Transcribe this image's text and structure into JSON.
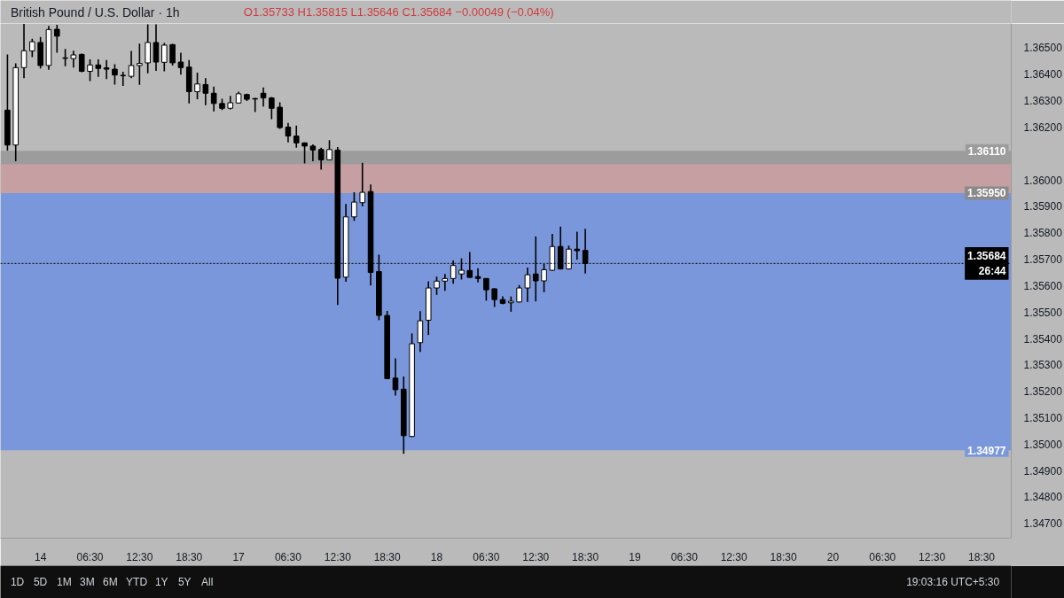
{
  "chart_data": {
    "type": "candlestick",
    "title": "British Pound / U.S. Dollar · 1h",
    "subtitle": "O1.35733 H1.35815 L1.35646 C1.35684 −0.00049 (−0.04%)",
    "categories": [
      null,
      null,
      null,
      null,
      "14",
      null,
      null,
      null,
      null,
      null,
      "06:30",
      null,
      null,
      null,
      null,
      null,
      "12:30",
      null,
      null,
      null,
      null,
      null,
      "18:30",
      null,
      null,
      null,
      null,
      null,
      "17",
      null,
      null,
      null,
      null,
      null,
      "06:30",
      null,
      null,
      null,
      null,
      null,
      "12:30",
      null,
      null,
      null,
      null,
      null,
      "18:30",
      null,
      null,
      null,
      null,
      null,
      "18",
      null,
      null,
      null,
      null,
      null,
      "06:30",
      null,
      null,
      null,
      null,
      null,
      "12:30",
      null,
      null,
      null,
      null,
      null,
      "18:30",
      null,
      null,
      null,
      null,
      null,
      "19",
      null,
      null,
      null,
      null,
      null,
      "06:30",
      null,
      null,
      null,
      null,
      null,
      "12:30",
      null,
      null,
      null,
      null,
      null,
      "18:30",
      null,
      null,
      null,
      null,
      null,
      "20",
      null,
      null,
      null,
      null,
      null,
      "06:30",
      null,
      null,
      null,
      null,
      null,
      "12:30",
      null,
      null,
      null,
      null,
      null,
      "18:30",
      null,
      null,
      null
    ],
    "ohlc": [
      [
        1.36264,
        1.36475,
        1.36111,
        1.36132
      ],
      [
        1.36132,
        1.36441,
        1.36071,
        1.36425
      ],
      [
        1.36425,
        1.3659,
        1.36385,
        1.36489
      ],
      [
        1.36488,
        1.36534,
        1.36465,
        1.36523
      ],
      [
        1.3652,
        1.36541,
        1.36422,
        1.36433
      ],
      [
        1.36433,
        1.36583,
        1.36417,
        1.36569
      ],
      [
        1.3657,
        1.36587,
        1.36481,
        1.36544
      ],
      [
        1.36462,
        1.36496,
        1.3643,
        1.3646
      ],
      [
        1.36459,
        1.36489,
        1.36425,
        1.36473
      ],
      [
        1.36475,
        1.36478,
        1.36408,
        1.36411
      ],
      [
        1.36411,
        1.36456,
        1.36374,
        1.36435
      ],
      [
        1.36435,
        1.36456,
        1.3639,
        1.36422
      ],
      [
        1.36424,
        1.36454,
        1.36382,
        1.36419
      ],
      [
        1.36419,
        1.36438,
        1.36361,
        1.36397
      ],
      [
        1.36394,
        1.36409,
        1.36356,
        1.36396
      ],
      [
        1.36392,
        1.36488,
        1.36385,
        1.36433
      ],
      [
        1.36433,
        1.36516,
        1.3636,
        1.36441
      ],
      [
        1.36443,
        1.36589,
        1.36403,
        1.3652
      ],
      [
        1.3652,
        1.36589,
        1.36413,
        1.36446
      ],
      [
        1.36445,
        1.36518,
        1.36411,
        1.3651
      ],
      [
        1.36512,
        1.36515,
        1.36433,
        1.36443
      ],
      [
        1.36446,
        1.36481,
        1.36398,
        1.36425
      ],
      [
        1.36427,
        1.36454,
        1.36289,
        1.36334
      ],
      [
        1.36334,
        1.36406,
        1.36305,
        1.36363
      ],
      [
        1.36361,
        1.36385,
        1.36283,
        1.36328
      ],
      [
        1.36328,
        1.36353,
        1.36259,
        1.36289
      ],
      [
        1.36289,
        1.36307,
        1.36264,
        1.36271
      ],
      [
        1.36271,
        1.36318,
        1.36267,
        1.36292
      ],
      [
        1.36291,
        1.36334,
        1.36289,
        1.36326
      ],
      [
        1.36323,
        1.36326,
        1.36299,
        1.36305
      ],
      [
        1.36308,
        1.3631,
        1.36257,
        1.36306
      ],
      [
        1.36328,
        1.3635,
        1.36278,
        1.3631
      ],
      [
        1.3631,
        1.36314,
        1.3623,
        1.36271
      ],
      [
        1.36275,
        1.36294,
        1.36193,
        1.36198
      ],
      [
        1.362,
        1.36216,
        1.36142,
        1.36166
      ],
      [
        1.36166,
        1.36206,
        1.36122,
        1.3614
      ],
      [
        1.3614,
        1.36142,
        1.36062,
        1.36128
      ],
      [
        1.36128,
        1.36134,
        1.36071,
        1.36113
      ],
      [
        1.36115,
        1.36122,
        1.36039,
        1.36076
      ],
      [
        1.36076,
        1.3615,
        1.36075,
        1.36115
      ],
      [
        1.36113,
        1.36124,
        1.35527,
        1.35628
      ],
      [
        1.35632,
        1.35909,
        1.35615,
        1.3586
      ],
      [
        1.3586,
        1.35953,
        1.35845,
        1.35916
      ],
      [
        1.35914,
        1.36065,
        1.359,
        1.35953
      ],
      [
        1.35956,
        1.35983,
        1.356,
        1.3565
      ],
      [
        1.35653,
        1.35717,
        1.35469,
        1.35487
      ],
      [
        1.35487,
        1.35504,
        1.35246,
        1.35248
      ],
      [
        1.3525,
        1.35325,
        1.35184,
        1.35206
      ],
      [
        1.35208,
        1.35256,
        1.34963,
        1.35032
      ],
      [
        1.35029,
        1.35419,
        1.35027,
        1.3538
      ],
      [
        1.35384,
        1.35503,
        1.35349,
        1.35467
      ],
      [
        1.35469,
        1.35616,
        1.35413,
        1.35591
      ],
      [
        1.35591,
        1.35634,
        1.35565,
        1.35617
      ],
      [
        1.35617,
        1.35644,
        1.3558,
        1.35627
      ],
      [
        1.35627,
        1.35695,
        1.35607,
        1.35676
      ],
      [
        1.35644,
        1.35703,
        1.35623,
        1.35658
      ],
      [
        1.35657,
        1.35727,
        1.3563,
        1.35631
      ],
      [
        1.35634,
        1.35666,
        1.35612,
        1.35627
      ],
      [
        1.35627,
        1.35628,
        1.35543,
        1.35584
      ],
      [
        1.35588,
        1.35589,
        1.35519,
        1.35547
      ],
      [
        1.35547,
        1.35559,
        1.35529,
        1.35533
      ],
      [
        1.35535,
        1.35559,
        1.35501,
        1.35541
      ],
      [
        1.35538,
        1.35602,
        1.35536,
        1.35591
      ],
      [
        1.35591,
        1.35668,
        1.35538,
        1.35641
      ],
      [
        1.35644,
        1.35786,
        1.3554,
        1.35618
      ],
      [
        1.35618,
        1.35682,
        1.35575,
        1.3566
      ],
      [
        1.35658,
        1.35796,
        1.35656,
        1.35748
      ],
      [
        1.35748,
        1.35823,
        1.35661,
        1.35663
      ],
      [
        1.35663,
        1.35751,
        1.35661,
        1.35738
      ],
      [
        1.35738,
        1.35804,
        1.35698,
        1.35732
      ],
      [
        1.35733,
        1.35815,
        1.35646,
        1.35684
      ],
      null,
      null,
      null,
      null,
      null,
      null,
      null,
      null,
      null,
      null,
      null,
      null,
      null,
      null,
      null,
      null,
      null,
      null,
      null,
      null,
      null,
      null,
      null,
      null,
      null,
      null,
      null,
      null,
      null,
      null,
      null,
      null,
      null,
      null,
      null,
      null,
      null,
      null,
      null,
      null,
      null,
      null,
      null,
      null,
      null,
      null,
      null,
      null,
      null,
      null,
      null
    ],
    "colors": [
      "#000000",
      "#ffffff",
      "#ffffff",
      "#ffffff",
      "#000000",
      "#ffffff",
      "#000000",
      "#000000",
      "#ffffff",
      "#000000",
      "#ffffff",
      "#000000",
      "#000000",
      "#000000",
      "#ffffff",
      "#ffffff",
      "#ffffff",
      "#ffffff",
      "#000000",
      "#ffffff",
      "#000000",
      "#000000",
      "#000000",
      "#ffffff",
      "#000000",
      "#000000",
      "#000000",
      "#ffffff",
      "#ffffff",
      "#000000",
      "#000000",
      "#000000",
      "#000000",
      "#000000",
      "#000000",
      "#000000",
      "#000000",
      "#000000",
      "#000000",
      "#ffffff",
      "#000000",
      "#ffffff",
      "#ffffff",
      "#ffffff",
      "#000000",
      "#000000",
      "#000000",
      "#000000",
      "#000000",
      "#ffffff",
      "#ffffff",
      "#ffffff",
      "#ffffff",
      "#ffffff",
      "#ffffff",
      "#ffffff",
      "#000000",
      "#000000",
      "#000000",
      "#000000",
      "#000000",
      "#ffffff",
      "#ffffff",
      "#ffffff",
      "#000000",
      "#ffffff",
      "#ffffff",
      "#000000",
      "#ffffff",
      "#000000",
      "#000000",
      null,
      null,
      null,
      null,
      null,
      null,
      null,
      null,
      null,
      null,
      null,
      null,
      null,
      null,
      null,
      null,
      null,
      null,
      null,
      null,
      null,
      null,
      null,
      null,
      null,
      null,
      null,
      null,
      null,
      null,
      null,
      null,
      null,
      null,
      null,
      null,
      null,
      null,
      null,
      null,
      null,
      null,
      null,
      null,
      null,
      null,
      null,
      null,
      null,
      null,
      null
    ],
    "ylim": [
      1.34644,
      1.36592
    ],
    "yticks": [
      {
        "value": 1.365,
        "label": "1.36500"
      },
      {
        "value": 1.364,
        "label": "1.36400"
      },
      {
        "value": 1.363,
        "label": "1.36300"
      },
      {
        "value": 1.362,
        "label": "1.36200"
      },
      {
        "value": 1.36,
        "label": "1.36000"
      },
      {
        "value": 1.359,
        "label": "1.35900"
      },
      {
        "value": 1.358,
        "label": "1.35800"
      },
      {
        "value": 1.357,
        "label": "1.35700"
      },
      {
        "value": 1.356,
        "label": "1.35600"
      },
      {
        "value": 1.355,
        "label": "1.35500"
      },
      {
        "value": 1.354,
        "label": "1.35400"
      },
      {
        "value": 1.353,
        "label": "1.35300"
      },
      {
        "value": 1.352,
        "label": "1.35200"
      },
      {
        "value": 1.351,
        "label": "1.35100"
      },
      {
        "value": 1.35,
        "label": "1.35000"
      },
      {
        "value": 1.349,
        "label": "1.34900"
      },
      {
        "value": 1.348,
        "label": "1.34800"
      },
      {
        "value": 1.347,
        "label": "1.34700"
      }
    ],
    "bands": [
      {
        "axis": "y",
        "from": 1.3595,
        "to": 1.3611,
        "label": "1.36110",
        "color": "#9c9c9c"
      },
      {
        "axis": "y",
        "from": 1.3595,
        "to": 1.34977,
        "label": "1.34977",
        "color": "#7b97dc"
      },
      {
        "axis": "y",
        "from": 1.3595,
        "to": 1.3606,
        "color": "#c59fa1"
      }
    ],
    "ref_lines": [
      {
        "axis": "y",
        "value": 1.35684,
        "label": "1.35684\n26:44",
        "color": "#000000",
        "line_style": "dotted"
      }
    ],
    "annotations": [
      {
        "text": "1.35950",
        "y": 1.3595
      },
      "1D",
      "5D",
      "1M",
      "3M",
      "6M",
      "YTD",
      "1Y",
      "5Y",
      "All",
      "19:03:16 UTC+5:30"
    ]
  }
}
